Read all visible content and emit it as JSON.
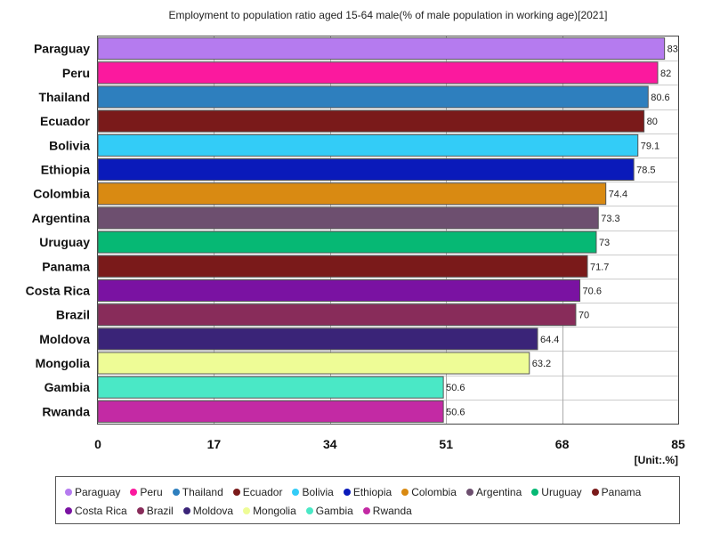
{
  "chart_data": {
    "type": "bar",
    "orientation": "horizontal",
    "title": "Employment to population ratio aged 15-64 male(% of male population in working age)[2021]",
    "unit_label": "[Unit:.%]",
    "xlim": [
      0,
      85
    ],
    "ticks": [
      0,
      17,
      34,
      51,
      68,
      85
    ],
    "grid": true,
    "legend_position": "bottom",
    "categories": [
      "Paraguay",
      "Peru",
      "Thailand",
      "Ecuador",
      "Bolivia",
      "Ethiopia",
      "Colombia",
      "Argentina",
      "Uruguay",
      "Panama",
      "Costa Rica",
      "Brazil",
      "Moldova",
      "Mongolia",
      "Gambia",
      "Rwanda"
    ],
    "values": [
      83,
      82,
      80.6,
      80,
      79.1,
      78.5,
      74.4,
      73.3,
      73,
      71.7,
      70.6,
      70,
      64.4,
      63.2,
      50.6,
      50.6
    ],
    "colors": [
      "#b57bef",
      "#fb199e",
      "#2e7fbe",
      "#7a1a1a",
      "#33ccf7",
      "#0a1aba",
      "#d98a12",
      "#6d4f6f",
      "#06b874",
      "#7a1a1a",
      "#7a12a2",
      "#882c5a",
      "#3a2478",
      "#eefc96",
      "#4ae8c6",
      "#c32aa4"
    ]
  }
}
